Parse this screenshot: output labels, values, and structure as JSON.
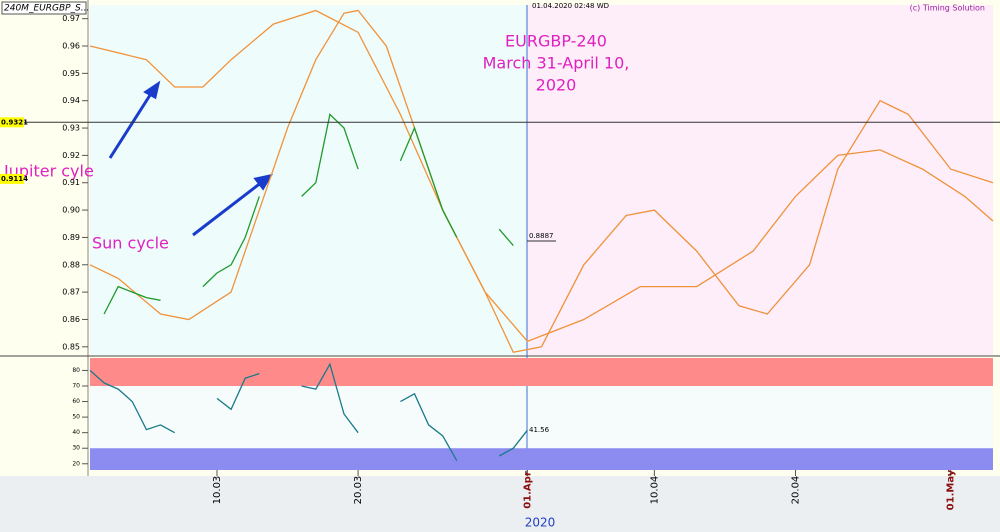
{
  "header": {
    "symbol": "240M_EURGBP_S...",
    "cursor": "01.04.2020 02:48 WD",
    "credit": "(c) Timing Solution"
  },
  "chart_data": [
    {
      "type": "line",
      "annotation": [
        "EURGBP-240",
        "March 31-April 10,",
        "2020"
      ],
      "xlim": [
        "2020-03-01",
        "2020-05-04"
      ],
      "ylim": [
        0.847,
        0.975
      ],
      "yticks": [
        0.85,
        0.86,
        0.87,
        0.88,
        0.89,
        {
          "value": 0.9,
          "label": "0.90"
        },
        0.91,
        0.92,
        0.93,
        0.94,
        0.95,
        0.96,
        0.97
      ],
      "price_labels": [
        0.9321,
        0.9114,
        0.8887
      ],
      "series": [
        {
          "name": "Sun cycle",
          "color": "#f0923a",
          "x": [
            "2020-03-01",
            "2020-03-03",
            "2020-03-06",
            "2020-03-08",
            "2020-03-11",
            "2020-03-13",
            "2020-03-15",
            "2020-03-17",
            "2020-03-19",
            "2020-03-20",
            "2020-03-22",
            "2020-03-24",
            "2020-03-26",
            "2020-03-29",
            "2020-03-31",
            "2020-04-02",
            "2020-04-05",
            "2020-04-08",
            "2020-04-10",
            "2020-04-13",
            "2020-04-16",
            "2020-04-18",
            "2020-04-21",
            "2020-04-23",
            "2020-04-26",
            "2020-04-28",
            "2020-05-01",
            "2020-05-04"
          ],
          "values": [
            0.88,
            0.875,
            0.862,
            0.86,
            0.87,
            0.9,
            0.93,
            0.955,
            0.972,
            0.973,
            0.96,
            0.93,
            0.9,
            0.87,
            0.848,
            0.85,
            0.88,
            0.898,
            0.9,
            0.885,
            0.865,
            0.862,
            0.88,
            0.915,
            0.94,
            0.935,
            0.915,
            0.91
          ]
        },
        {
          "name": "Jupiter cyle",
          "color": "#f0923a",
          "x": [
            "2020-03-01",
            "2020-03-05",
            "2020-03-07",
            "2020-03-09",
            "2020-03-11",
            "2020-03-14",
            "2020-03-17",
            "2020-03-20",
            "2020-03-23",
            "2020-03-26",
            "2020-03-29",
            "2020-04-01",
            "2020-04-05",
            "2020-04-09",
            "2020-04-13",
            "2020-04-17",
            "2020-04-20",
            "2020-04-23",
            "2020-04-26",
            "2020-04-29",
            "2020-05-02",
            "2020-05-04"
          ],
          "values": [
            0.96,
            0.955,
            0.945,
            0.945,
            0.955,
            0.968,
            0.973,
            0.965,
            0.935,
            0.9,
            0.87,
            0.852,
            0.86,
            0.872,
            0.872,
            0.885,
            0.905,
            0.92,
            0.922,
            0.915,
            0.905,
            0.896
          ]
        },
        {
          "color": "#1f9a2a",
          "x": [
            "2020-03-02",
            "2020-03-03",
            "2020-03-04",
            "2020-03-05",
            "2020-03-06",
            "2020-03-07",
            "2020-03-09",
            "2020-03-10",
            "2020-03-11",
            "2020-03-12",
            "2020-03-13",
            "2020-03-14",
            "2020-03-16",
            "2020-03-17",
            "2020-03-18",
            "2020-03-19",
            "2020-03-20",
            "2020-03-21",
            "2020-03-23",
            "2020-03-24",
            "2020-03-25",
            "2020-03-26",
            "2020-03-27",
            "2020-03-28",
            "2020-03-30",
            "2020-03-31"
          ],
          "values": [
            0.862,
            0.872,
            0.87,
            0.868,
            0.867,
            null,
            0.872,
            0.877,
            0.88,
            0.89,
            0.905,
            null,
            0.905,
            0.91,
            0.935,
            0.93,
            0.915,
            null,
            0.918,
            0.93,
            0.915,
            0.9,
            0.89,
            null,
            0.893,
            0.887
          ]
        }
      ]
    },
    {
      "type": "line",
      "xlabel": "2020",
      "xlim": [
        "2020-03-01",
        "2020-05-04"
      ],
      "ylim": [
        16,
        88
      ],
      "yticks": [
        20,
        30,
        40,
        50,
        60,
        70,
        80
      ],
      "overbought": 70,
      "oversold": 30,
      "last_label": 41.56,
      "xticks": [
        {
          "value": "2020-03-10",
          "label": "10.03"
        },
        {
          "value": "2020-03-20",
          "label": "20.03"
        },
        {
          "value": "2020-04-01",
          "label": "01.Apr"
        },
        {
          "value": "2020-04-10",
          "label": "10.04"
        },
        {
          "value": "2020-04-20",
          "label": "20.04"
        },
        {
          "value": "2020-05-01",
          "label": "01.May"
        }
      ],
      "series": [
        {
          "color": "#1a7a8a",
          "x": [
            "2020-03-01",
            "2020-03-02",
            "2020-03-03",
            "2020-03-04",
            "2020-03-05",
            "2020-03-06",
            "2020-03-07",
            "2020-03-09",
            "2020-03-10",
            "2020-03-11",
            "2020-03-12",
            "2020-03-13",
            "2020-03-14",
            "2020-03-16",
            "2020-03-17",
            "2020-03-18",
            "2020-03-19",
            "2020-03-20",
            "2020-03-21",
            "2020-03-23",
            "2020-03-24",
            "2020-03-25",
            "2020-03-26",
            "2020-03-27",
            "2020-03-28",
            "2020-03-30",
            "2020-03-31",
            "2020-04-01"
          ],
          "values": [
            80,
            72,
            68,
            60,
            42,
            45,
            40,
            null,
            62,
            55,
            75,
            78,
            null,
            70,
            68,
            84,
            52,
            40,
            null,
            60,
            65,
            45,
            38,
            22,
            null,
            25,
            30,
            41.56
          ]
        }
      ]
    }
  ]
}
